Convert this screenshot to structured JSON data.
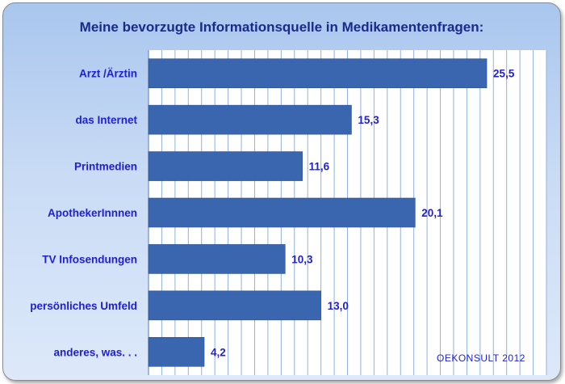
{
  "chart_data": {
    "type": "bar",
    "orientation": "horizontal",
    "title": "Meine bevorzugte Informationsquelle in Medikamentenfragen:",
    "categories": [
      "Arzt /Ärztin",
      "das Internet",
      "Printmedien",
      "ApothekerInnnen",
      "TV Infosendungen",
      "persönliches Umfeld",
      "anderes, was. . ."
    ],
    "values": [
      25.5,
      15.3,
      11.6,
      20.1,
      10.3,
      13.0,
      4.2
    ],
    "value_labels": [
      "25,5",
      "15,3",
      "11,6",
      "20,1",
      "10,3",
      "13,0",
      "4,2"
    ],
    "xlim": [
      0,
      30
    ],
    "grid": true,
    "bar_color": "#3a66b0",
    "source_note": "OEKONSULT 2012"
  }
}
